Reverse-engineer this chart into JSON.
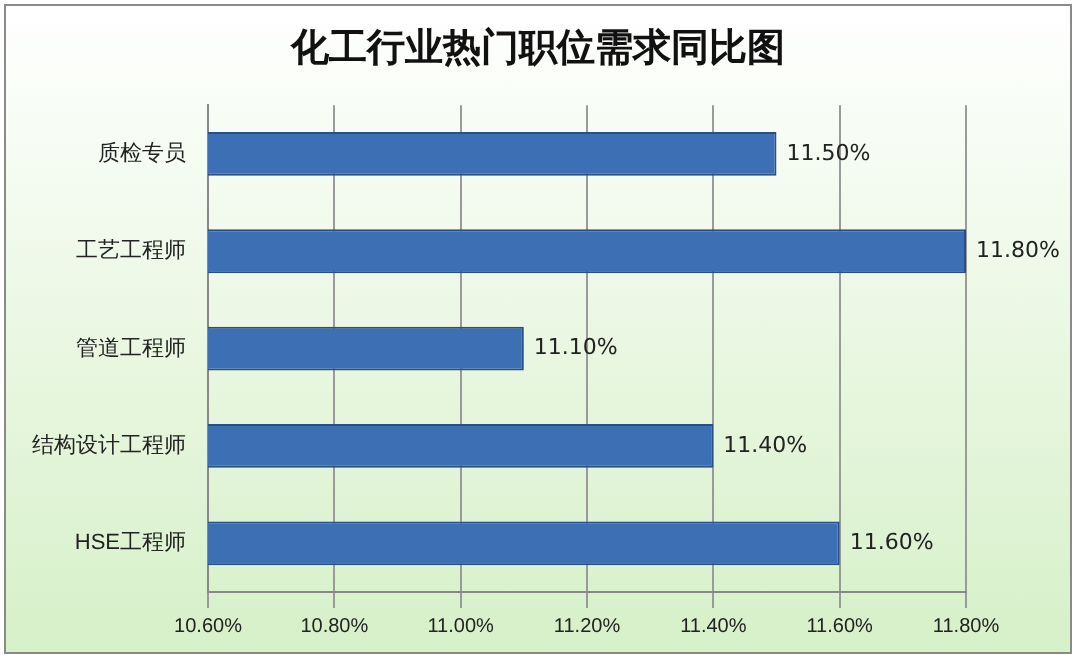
{
  "chart_data": {
    "type": "bar",
    "orientation": "horizontal",
    "title": "化工行业热门职位需求同比图",
    "categories": [
      "质检专员",
      "工艺工程师",
      "管道工程师",
      "结构设计工程师",
      "HSE工程师"
    ],
    "values": [
      11.5,
      11.8,
      11.1,
      11.4,
      11.6
    ],
    "color": "#3d6fb5",
    "value_labels": [
      "11.50%",
      "11.80%",
      "11.10%",
      "11.40%",
      "11.60%"
    ],
    "xlim": [
      10.6,
      11.8
    ],
    "xticks": [
      {
        "value": 10.6,
        "label": "10.60%"
      },
      {
        "value": 10.8,
        "label": "10.80%"
      },
      {
        "value": 11.0,
        "label": "11.00%"
      },
      {
        "value": 11.2,
        "label": "11.20%"
      },
      {
        "value": 11.4,
        "label": "11.40%"
      },
      {
        "value": 11.6,
        "label": "11.60%"
      },
      {
        "value": 11.8,
        "label": "11.80%"
      }
    ],
    "grid": "x"
  }
}
